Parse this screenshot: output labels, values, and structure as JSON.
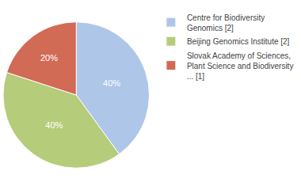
{
  "chart_data": {
    "type": "pie",
    "categories": [
      "Centre for Biodiversity\nGenomics [2]",
      "Beijing Genomics Institute [2]",
      "Slovak Academy of Sciences,\nPlant Science and Biodiversity\n... [1]"
    ],
    "values": [
      40,
      40,
      20
    ],
    "value_labels": [
      "40%",
      "40%",
      "20%"
    ],
    "colors": [
      "#aec6e8",
      "#b5cc7a",
      "#d16b55"
    ],
    "data_labels": true,
    "legend": "right"
  }
}
